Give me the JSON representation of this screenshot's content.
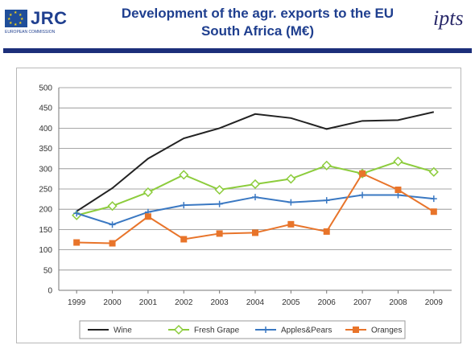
{
  "header": {
    "org_logo_text": "JRC",
    "org_logo_subtitle": "EUROPEAN COMMISSION",
    "title_line1": "Development of the agr. exports to the EU",
    "title_line2": "South Africa (M€)",
    "partner_logo_text": "ipts"
  },
  "colors": {
    "title": "#1f3f8f",
    "banner": "#1c2f7a"
  },
  "chart_data": {
    "type": "line",
    "title": "",
    "xlabel": "",
    "ylabel": "",
    "categories": [
      "1999",
      "2000",
      "2001",
      "2002",
      "2003",
      "2004",
      "2005",
      "2006",
      "2007",
      "2008",
      "2009"
    ],
    "ylim": [
      0,
      500
    ],
    "yticks": [
      0,
      50,
      100,
      150,
      200,
      250,
      300,
      350,
      400,
      450,
      500
    ],
    "grid": true,
    "legend_position": "bottom",
    "series": [
      {
        "name": "Wine",
        "color": "#222222",
        "marker": "none",
        "values": [
          195,
          252,
          325,
          375,
          400,
          435,
          425,
          398,
          418,
          420,
          440
        ]
      },
      {
        "name": "Fresh Grape",
        "color": "#8ccc3c",
        "marker": "diamond",
        "values": [
          185,
          208,
          242,
          285,
          248,
          262,
          275,
          308,
          288,
          318,
          292
        ]
      },
      {
        "name": "Apples&Pears",
        "color": "#3a78c2",
        "marker": "plus",
        "values": [
          190,
          162,
          193,
          210,
          213,
          230,
          217,
          222,
          235,
          235,
          226
        ]
      },
      {
        "name": "Oranges",
        "color": "#e8742a",
        "marker": "square",
        "values": [
          118,
          116,
          182,
          126,
          140,
          142,
          163,
          145,
          288,
          248,
          194
        ]
      }
    ]
  }
}
